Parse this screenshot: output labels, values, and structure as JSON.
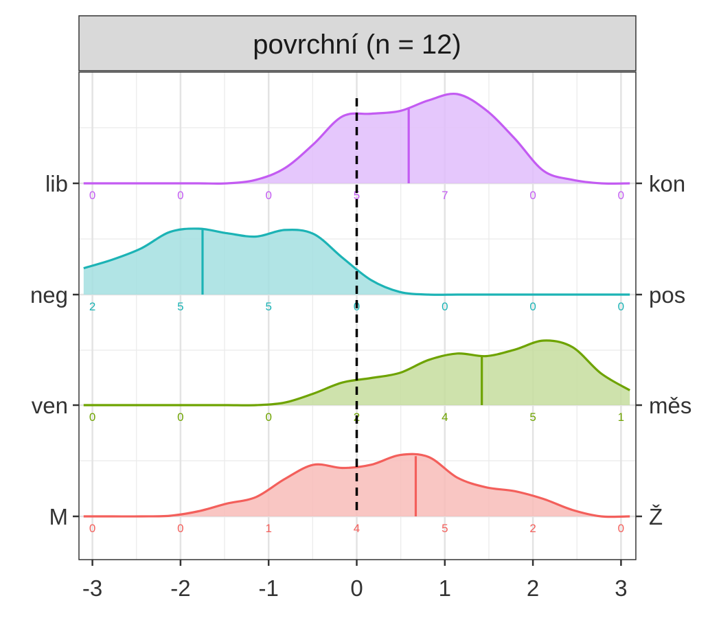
{
  "chart_data": {
    "type": "ridgeline-density",
    "panel_title": "povrchní (n = 12)",
    "x_ticks": [
      "-3",
      "-2",
      "-1",
      "0",
      "1",
      "2",
      "3"
    ],
    "xlim": [
      -3.1,
      3.1
    ],
    "reference_line_x": 0,
    "grid": true,
    "rows": [
      {
        "left_label": "lib",
        "right_label": "kon",
        "color": "#c35bf2",
        "fill": "#e1bdfb",
        "counts": [
          "0",
          "0",
          "0",
          "5",
          "7",
          "0",
          "0"
        ],
        "mean": 0.59,
        "density": [
          0,
          0,
          0,
          0,
          0,
          0,
          0.04,
          0.17,
          0.44,
          0.75,
          0.78,
          0.81,
          0.93,
          1.0,
          0.82,
          0.5,
          0.14,
          0.04,
          0,
          0
        ]
      },
      {
        "left_label": "neg",
        "right_label": "pos",
        "color": "#1cb3b5",
        "fill": "#a3dfe0",
        "counts": [
          "2",
          "5",
          "5",
          "0",
          "0",
          "0",
          "0"
        ],
        "mean": -1.75,
        "density": [
          0.4,
          0.53,
          0.7,
          0.95,
          1.0,
          0.93,
          0.88,
          0.98,
          0.92,
          0.56,
          0.22,
          0.04,
          0,
          0,
          0,
          0,
          0,
          0,
          0,
          0
        ]
      },
      {
        "left_label": "ven",
        "right_label": "měs",
        "color": "#6ea300",
        "fill": "#c6dd9d",
        "counts": [
          "0",
          "0",
          "0",
          "2",
          "4",
          "5",
          "1"
        ],
        "mean": 1.42,
        "density": [
          0,
          0,
          0,
          0,
          0,
          0,
          0,
          0.04,
          0.18,
          0.35,
          0.42,
          0.5,
          0.7,
          0.8,
          0.76,
          0.86,
          1.0,
          0.9,
          0.49,
          0.23
        ]
      },
      {
        "left_label": "M",
        "right_label": "Ž",
        "color": "#f35f5b",
        "fill": "#f8bcb9",
        "counts": [
          "0",
          "0",
          "1",
          "4",
          "5",
          "2",
          "0"
        ],
        "mean": 0.67,
        "density": [
          0,
          0,
          0,
          0.01,
          0.08,
          0.2,
          0.3,
          0.58,
          0.8,
          0.75,
          0.8,
          0.95,
          0.92,
          0.6,
          0.45,
          0.39,
          0.27,
          0.1,
          0,
          0
        ]
      }
    ]
  }
}
